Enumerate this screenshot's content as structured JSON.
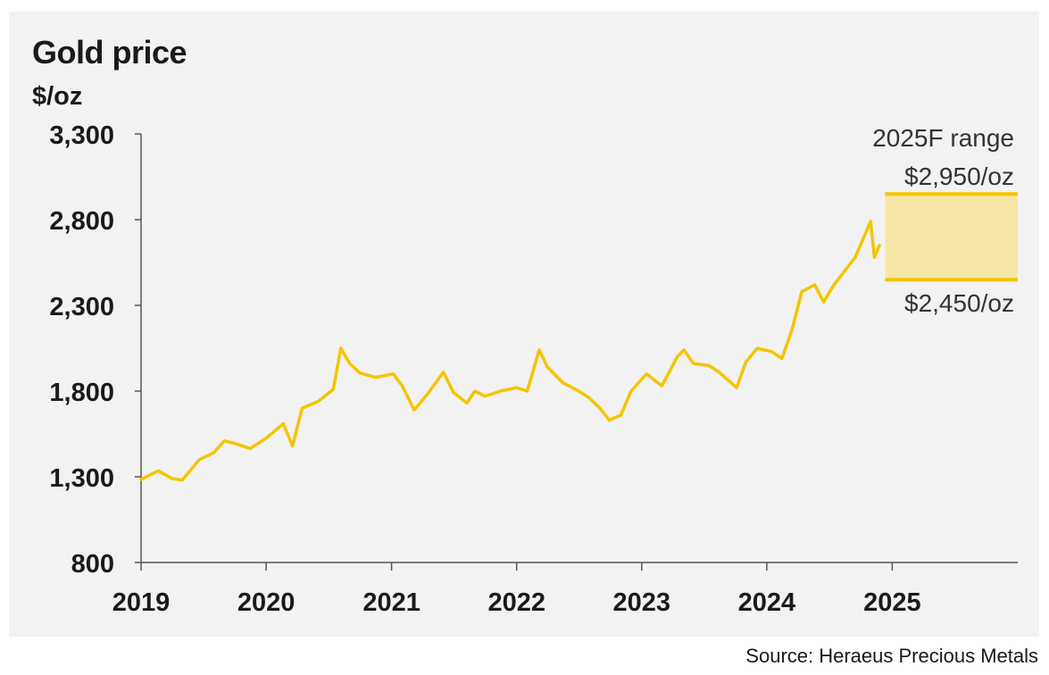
{
  "title": "Gold price",
  "unit": "$/oz",
  "source": "Source: Heraeus Precious Metals",
  "colors": {
    "line": "#f5c400",
    "band": "#f7e7a6",
    "band_edge": "#f5c400",
    "axis": "#555555"
  },
  "chart_data": {
    "type": "line",
    "title": "Gold price",
    "ylabel": "$/oz",
    "xlabel": "",
    "ylim": [
      800,
      3300
    ],
    "xlim": [
      "2019-01-01",
      "2026-01-01"
    ],
    "yticks": [
      "3,300",
      "2,800",
      "2,300",
      "1,800",
      "1,300",
      "800"
    ],
    "ytick_values": [
      3300,
      2800,
      2300,
      1800,
      1300,
      800
    ],
    "xticks": [
      "2019",
      "2020",
      "2021",
      "2022",
      "2023",
      "2024",
      "2025"
    ],
    "xtick_values": [
      "2019-01-01",
      "2020-01-01",
      "2021-01-01",
      "2022-01-01",
      "2023-01-01",
      "2024-01-01",
      "2025-01-01"
    ],
    "grid": false,
    "series": [
      {
        "x": [
          "2019-01-01",
          "2019-02-20",
          "2019-04-01",
          "2019-05-01",
          "2019-06-20",
          "2019-08-01",
          "2019-09-01",
          "2019-10-01",
          "2019-11-15",
          "2020-01-01",
          "2020-02-20",
          "2020-03-18",
          "2020-04-15",
          "2020-06-01",
          "2020-07-15",
          "2020-08-06",
          "2020-09-01",
          "2020-10-01",
          "2020-11-15",
          "2021-01-06",
          "2021-02-01",
          "2021-03-08",
          "2021-04-15",
          "2021-06-01",
          "2021-07-01",
          "2021-08-09",
          "2021-09-01",
          "2021-10-01",
          "2021-11-15",
          "2022-01-01",
          "2022-02-01",
          "2022-03-08",
          "2022-04-01",
          "2022-05-15",
          "2022-07-01",
          "2022-08-01",
          "2022-09-01",
          "2022-09-28",
          "2022-11-01",
          "2022-12-01",
          "2023-01-15",
          "2023-03-01",
          "2023-04-15",
          "2023-05-04",
          "2023-06-01",
          "2023-07-15",
          "2023-08-15",
          "2023-10-05",
          "2023-11-01",
          "2023-12-04",
          "2024-01-15",
          "2024-02-14",
          "2024-03-15",
          "2024-04-12",
          "2024-05-20",
          "2024-06-15",
          "2024-07-15",
          "2024-08-15",
          "2024-09-15",
          "2024-10-30",
          "2024-11-10",
          "2024-11-25"
        ],
        "values": [
          1285,
          1335,
          1290,
          1280,
          1400,
          1440,
          1510,
          1495,
          1465,
          1525,
          1610,
          1480,
          1700,
          1740,
          1810,
          2050,
          1960,
          1905,
          1880,
          1900,
          1830,
          1690,
          1780,
          1910,
          1790,
          1730,
          1800,
          1770,
          1800,
          1820,
          1800,
          2040,
          1940,
          1850,
          1800,
          1760,
          1700,
          1630,
          1660,
          1800,
          1900,
          1830,
          2000,
          2040,
          1960,
          1950,
          1910,
          1820,
          1970,
          2050,
          2030,
          1990,
          2160,
          2380,
          2420,
          2320,
          2420,
          2500,
          2580,
          2790,
          2580,
          2650
        ]
      }
    ],
    "annotations": {
      "range_title": "2025F range",
      "high_label": "$2,950/oz",
      "low_label": "$2,450/oz",
      "high": 2950,
      "low": 2450,
      "period": [
        "2025-01-01",
        "2026-01-01"
      ]
    }
  }
}
